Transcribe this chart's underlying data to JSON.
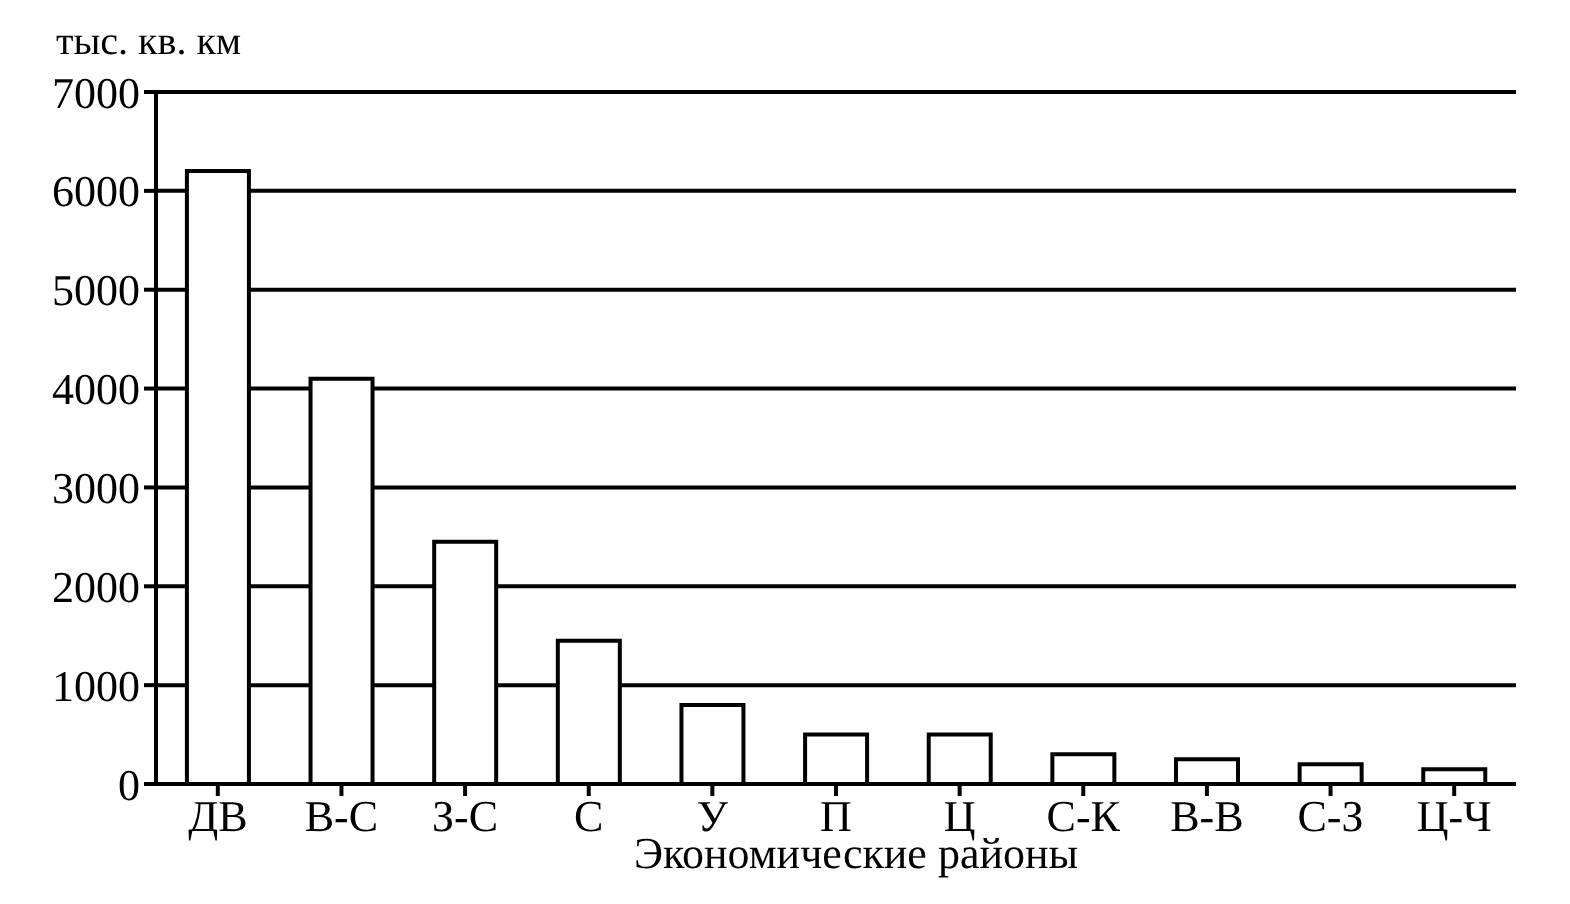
{
  "chart_data": {
    "type": "bar",
    "ylabel": "тыс. кв. км",
    "xlabel": "Экономические районы",
    "categories": [
      "ДВ",
      "В-С",
      "З-С",
      "С",
      "У",
      "П",
      "Ц",
      "С-К",
      "В-В",
      "С-З",
      "Ц-Ч"
    ],
    "values": [
      6200,
      4100,
      2450,
      1450,
      800,
      500,
      500,
      300,
      250,
      200,
      150
    ],
    "color": "#ffffff",
    "ylim": [
      0,
      7000
    ],
    "yticks": [
      0,
      1000,
      2000,
      3000,
      4000,
      5000,
      6000,
      7000
    ],
    "grid": "y"
  }
}
